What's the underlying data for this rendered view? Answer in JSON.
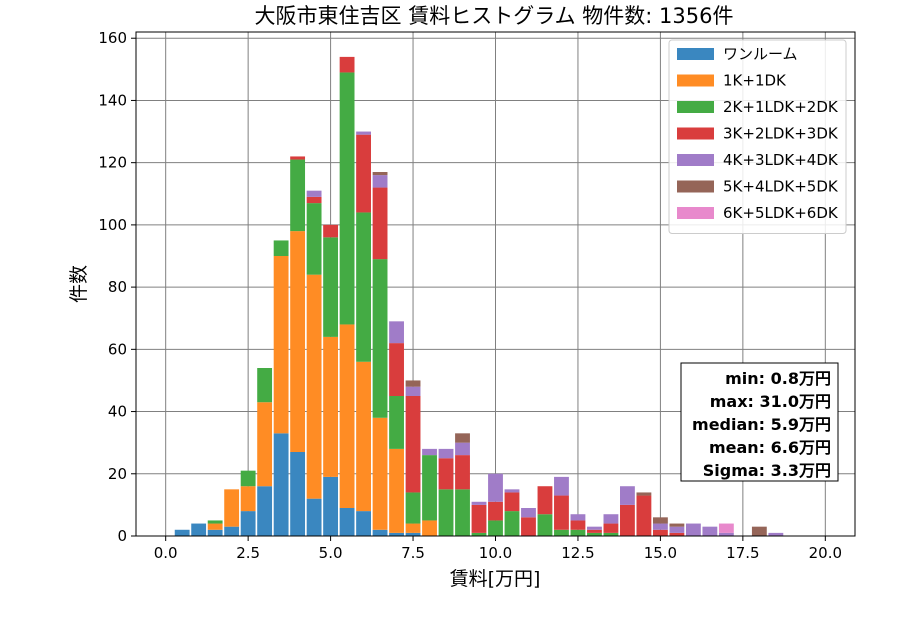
{
  "chart_data": {
    "type": "bar",
    "stacked": true,
    "title": "大阪市東住吉区 賃料ヒストグラム 物件数: 1356件",
    "xlabel": "賃料[万円]",
    "ylabel": "件数",
    "xlim": [
      -0.9,
      20.9
    ],
    "ylim": [
      0,
      162
    ],
    "bin_width": 0.5,
    "grid": true,
    "legend_position": "top-right",
    "x_ticks": [
      0.0,
      2.5,
      5.0,
      7.5,
      10.0,
      12.5,
      15.0,
      17.5,
      20.0
    ],
    "x_tick_labels": [
      "0.0",
      "2.5",
      "5.0",
      "7.5",
      "10.0",
      "12.5",
      "15.0",
      "17.5",
      "20.0"
    ],
    "y_ticks": [
      0,
      20,
      40,
      60,
      80,
      100,
      120,
      140,
      160
    ],
    "y_tick_labels": [
      "0",
      "20",
      "40",
      "60",
      "80",
      "100",
      "120",
      "140",
      "160"
    ],
    "x": [
      0.5,
      1.0,
      1.5,
      2.0,
      2.5,
      3.0,
      3.5,
      4.0,
      4.5,
      5.0,
      5.5,
      6.0,
      6.5,
      7.0,
      7.5,
      8.0,
      8.5,
      9.0,
      9.5,
      10.0,
      10.5,
      11.0,
      11.5,
      12.0,
      12.5,
      13.0,
      13.5,
      14.0,
      14.5,
      15.0,
      15.5,
      16.0,
      16.5,
      17.0,
      17.5,
      18.0,
      18.5
    ],
    "series": [
      {
        "name": "ワンルーム",
        "color": "#3a87c0",
        "values": [
          2,
          4,
          2,
          3,
          8,
          16,
          33,
          27,
          12,
          19,
          9,
          8,
          2,
          1,
          1,
          0,
          0,
          0,
          0,
          0,
          0,
          0,
          0,
          0,
          0,
          0,
          0,
          0,
          0,
          0,
          0,
          0,
          0,
          0,
          0,
          0,
          0
        ]
      },
      {
        "name": "1K+1DK",
        "color": "#ff8c24",
        "values": [
          0,
          0,
          2,
          12,
          8,
          27,
          57,
          71,
          72,
          45,
          59,
          48,
          36,
          27,
          3,
          5,
          0,
          0,
          0,
          0,
          0,
          0,
          0,
          0,
          0,
          0,
          0,
          0,
          0,
          0,
          0,
          0,
          0,
          0,
          0,
          0,
          0
        ]
      },
      {
        "name": "2K+1LDK+2DK",
        "color": "#44ab44",
        "values": [
          0,
          0,
          1,
          0,
          5,
          11,
          5,
          23,
          23,
          32,
          81,
          48,
          51,
          17,
          10,
          21,
          15,
          15,
          1,
          5,
          8,
          0,
          7,
          2,
          2,
          1,
          1,
          0,
          0,
          0,
          0,
          0,
          0,
          0,
          0,
          0,
          0
        ]
      },
      {
        "name": "3K+2LDK+3DK",
        "color": "#d93d3d",
        "values": [
          0,
          0,
          0,
          0,
          0,
          0,
          0,
          1,
          2,
          4,
          5,
          25,
          23,
          17,
          31,
          0,
          10,
          11,
          9,
          6,
          6,
          6,
          9,
          11,
          3,
          1,
          3,
          10,
          13,
          2,
          1,
          0,
          0,
          0,
          0,
          0,
          0
        ]
      },
      {
        "name": "4K+3LDK+4DK",
        "color": "#a07cc8",
        "values": [
          0,
          0,
          0,
          0,
          0,
          0,
          0,
          0,
          2,
          0,
          0,
          1,
          4,
          7,
          3,
          2,
          3,
          4,
          1,
          9,
          1,
          3,
          0,
          6,
          2,
          1,
          3,
          6,
          0,
          2,
          2,
          4,
          3,
          1,
          0,
          0,
          1
        ]
      },
      {
        "name": "5K+4LDK+5DK",
        "color": "#956558",
        "values": [
          0,
          0,
          0,
          0,
          0,
          0,
          0,
          0,
          0,
          0,
          0,
          0,
          1,
          0,
          2,
          0,
          0,
          3,
          0,
          0,
          0,
          0,
          0,
          0,
          0,
          0,
          0,
          0,
          1,
          2,
          1,
          0,
          0,
          0,
          0,
          3,
          0
        ]
      },
      {
        "name": "6K+5LDK+6DK",
        "color": "#e889cc",
        "values": [
          0,
          0,
          0,
          0,
          0,
          0,
          0,
          0,
          0,
          0,
          0,
          0,
          0,
          0,
          0,
          0,
          0,
          0,
          0,
          0,
          0,
          0,
          0,
          0,
          0,
          0,
          0,
          0,
          0,
          0,
          0,
          0,
          0,
          3,
          0,
          0,
          0
        ]
      }
    ],
    "stats": [
      "min: 0.8万円",
      "max: 31.0万円",
      "median: 5.9万円",
      "mean: 6.6万円",
      "Sigma: 3.3万円"
    ]
  }
}
